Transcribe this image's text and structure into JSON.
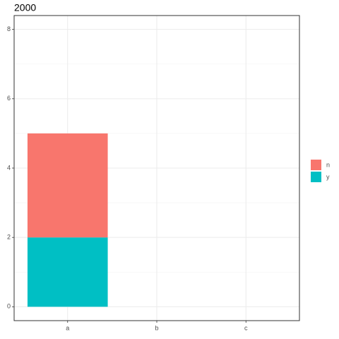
{
  "chart_data": {
    "type": "bar",
    "title": "2000",
    "categories": [
      "a",
      "b",
      "c"
    ],
    "series": [
      {
        "name": "n",
        "color": "#F8766D",
        "values": [
          3,
          0,
          0
        ]
      },
      {
        "name": "y",
        "color": "#00BFC4",
        "values": [
          2,
          0,
          0
        ]
      }
    ],
    "stacked": true,
    "ylim": [
      -0.4,
      8.4
    ],
    "yticks": [
      0,
      2,
      4,
      6,
      8
    ],
    "yminorticks": [
      1,
      3,
      5,
      7
    ],
    "grid": true,
    "legend": "right"
  }
}
